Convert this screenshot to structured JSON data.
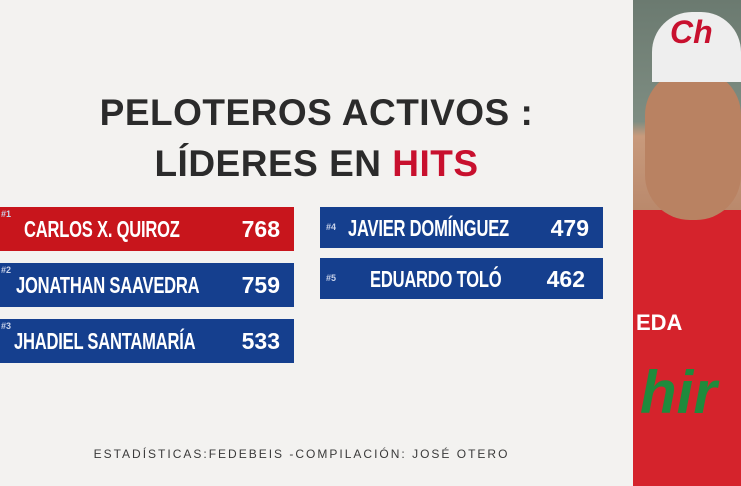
{
  "title": {
    "line1": "PELOTEROS ACTIVOS :",
    "line2_prefix": "LÍDERES EN ",
    "line2_highlight": "HITS"
  },
  "leaders": [
    {
      "rank": "#1",
      "name": "CARLOS X. QUIROZ",
      "hits": "768"
    },
    {
      "rank": "#2",
      "name": "JONATHAN SAAVEDRA",
      "hits": "759"
    },
    {
      "rank": "#3",
      "name": "JHADIEL SANTAMARÍA",
      "hits": "533"
    },
    {
      "rank": "#4",
      "name": "JAVIER DOMÍNGUEZ",
      "hits": "479"
    },
    {
      "rank": "#5",
      "name": "EDUARDO TOLÓ",
      "hits": "462"
    }
  ],
  "footer": "ESTADÍSTICAS:FEDEBEIS -COMPILACIÓN: JOSÉ OTERO",
  "photo": {
    "cap_logo": "Ch",
    "jersey_text": "EDA",
    "jersey_script": "hir"
  },
  "colors": {
    "red": "#c8151c",
    "blue": "#153f8e"
  }
}
